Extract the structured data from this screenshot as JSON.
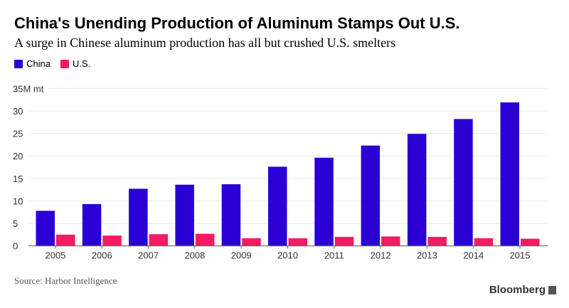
{
  "chart_data": {
    "type": "bar",
    "title": "China's Unending Production of Aluminum Stamps Out U.S.",
    "subtitle": "A surge in Chinese aluminum production has all but crushed U.S. smelters",
    "categories": [
      "2005",
      "2006",
      "2007",
      "2008",
      "2009",
      "2010",
      "2011",
      "2012",
      "2013",
      "2014",
      "2015"
    ],
    "series": [
      {
        "name": "China",
        "color": "#2a00d5",
        "values": [
          7.8,
          9.3,
          12.7,
          13.6,
          13.7,
          17.6,
          19.6,
          22.3,
          24.9,
          28.2,
          31.9
        ]
      },
      {
        "name": "U.S.",
        "color": "#f61a62",
        "values": [
          2.5,
          2.3,
          2.6,
          2.7,
          1.7,
          1.7,
          2.0,
          2.1,
          2.0,
          1.7,
          1.6
        ]
      }
    ],
    "yticks": [
      "0",
      "5",
      "10",
      "15",
      "20",
      "25",
      "30",
      "35M mt"
    ],
    "ylim": [
      0,
      35
    ],
    "ylabel": "",
    "xlabel": "",
    "grid": true,
    "legend": "top-left"
  },
  "footer": {
    "source": "Source: Harbor Intelligence",
    "brand": "Bloomberg"
  }
}
